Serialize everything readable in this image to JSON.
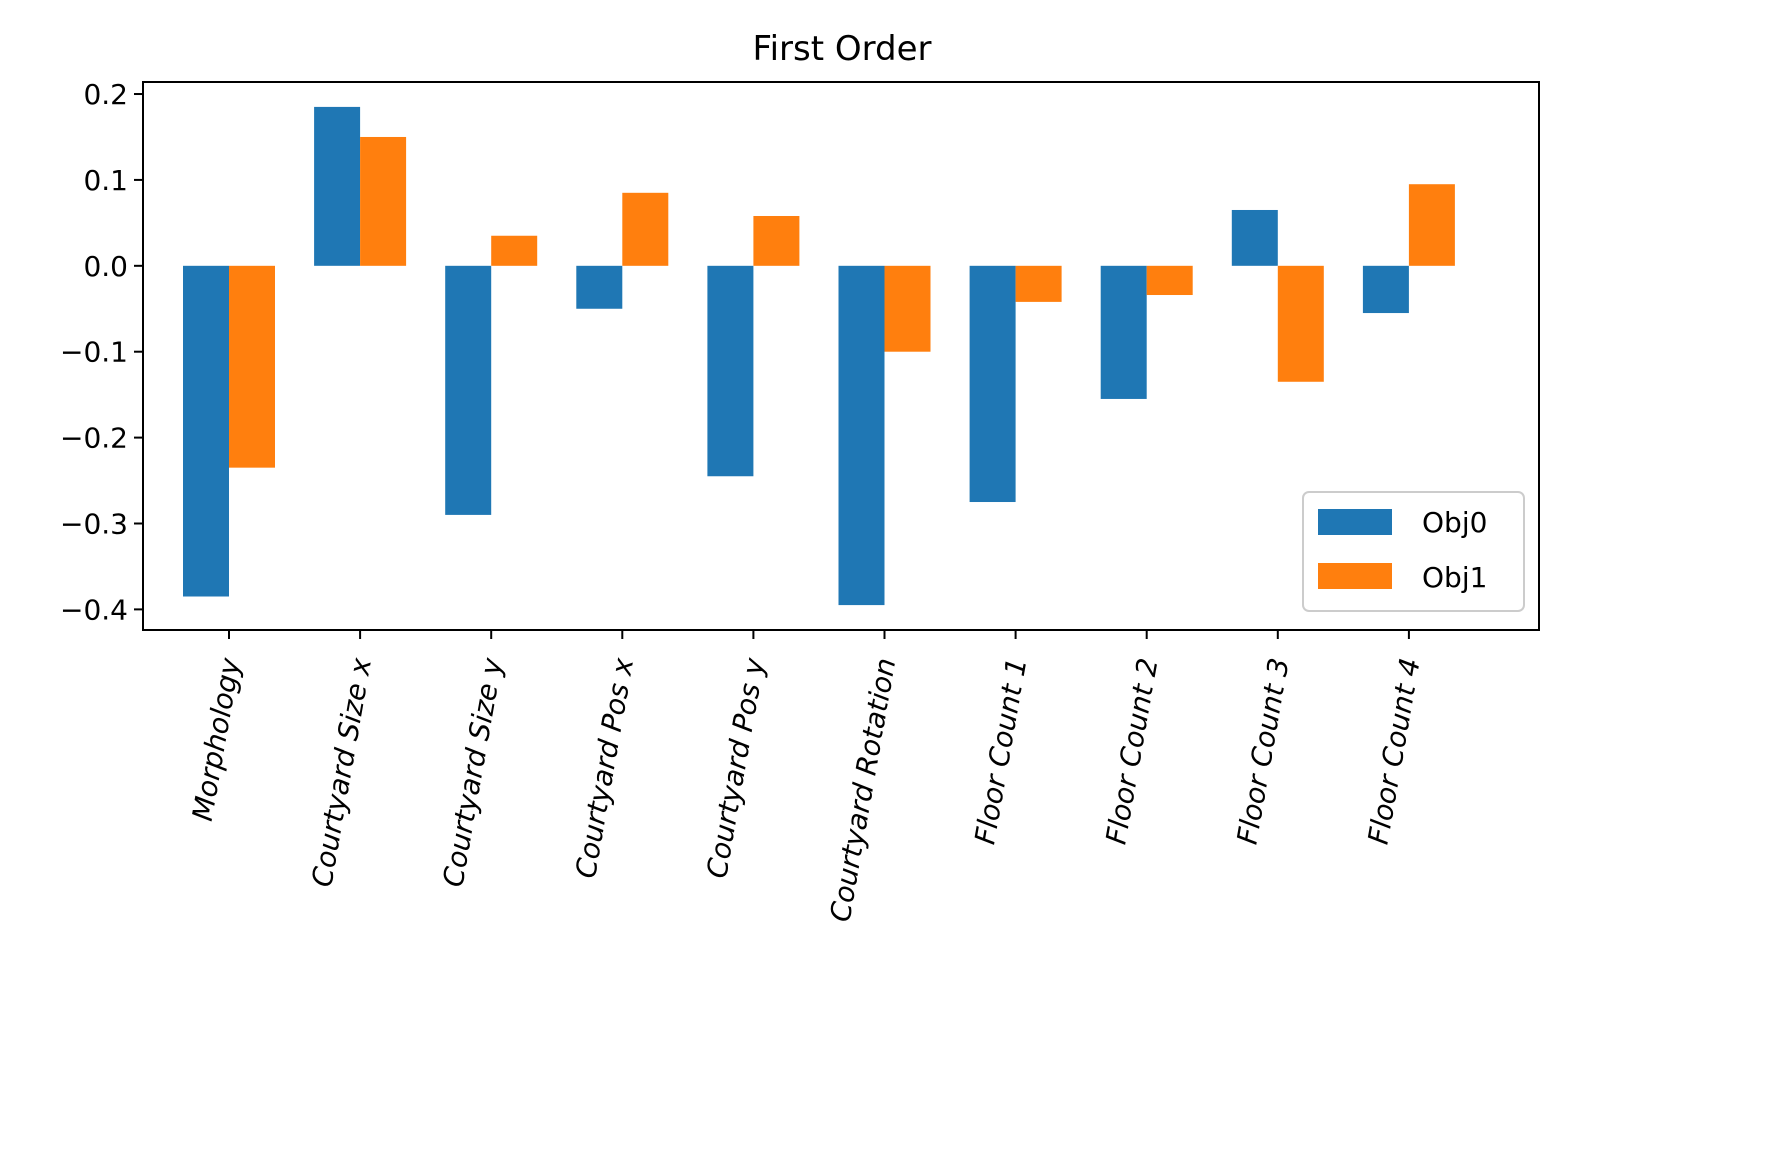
{
  "chart_data": {
    "type": "bar",
    "title": "First Order",
    "xlabel": "",
    "ylabel": "",
    "categories": [
      "Morphology",
      "Courtyard Size x",
      "Courtyard Size y",
      "Courtyard Pos x",
      "Courtyard Pos y",
      "Courtyard Rotation",
      "Floor Count 1",
      "Floor Count 2",
      "Floor Count 3",
      "Floor Count 4"
    ],
    "series": [
      {
        "name": "Obj0",
        "color": "#1f77b4",
        "values": [
          -0.385,
          0.185,
          -0.29,
          -0.05,
          -0.245,
          -0.395,
          -0.275,
          -0.155,
          0.065,
          -0.055
        ]
      },
      {
        "name": "Obj1",
        "color": "#ff7f0e",
        "values": [
          -0.235,
          0.15,
          0.035,
          0.085,
          0.058,
          -0.1,
          -0.042,
          -0.034,
          -0.135,
          0.095
        ]
      }
    ],
    "ylim": [
      -0.424,
      0.214
    ],
    "yticks": [
      0.2,
      0.1,
      0.0,
      -0.1,
      -0.2,
      -0.3,
      -0.4
    ],
    "ytick_labels": [
      "0.2",
      "0.1",
      "0.0",
      "−0.1",
      "−0.2",
      "−0.3",
      "−0.4"
    ],
    "x_tick_rotation_deg": 80,
    "grid": false,
    "legend": {
      "position": "lower-right",
      "entries": [
        "Obj0",
        "Obj1"
      ]
    }
  }
}
